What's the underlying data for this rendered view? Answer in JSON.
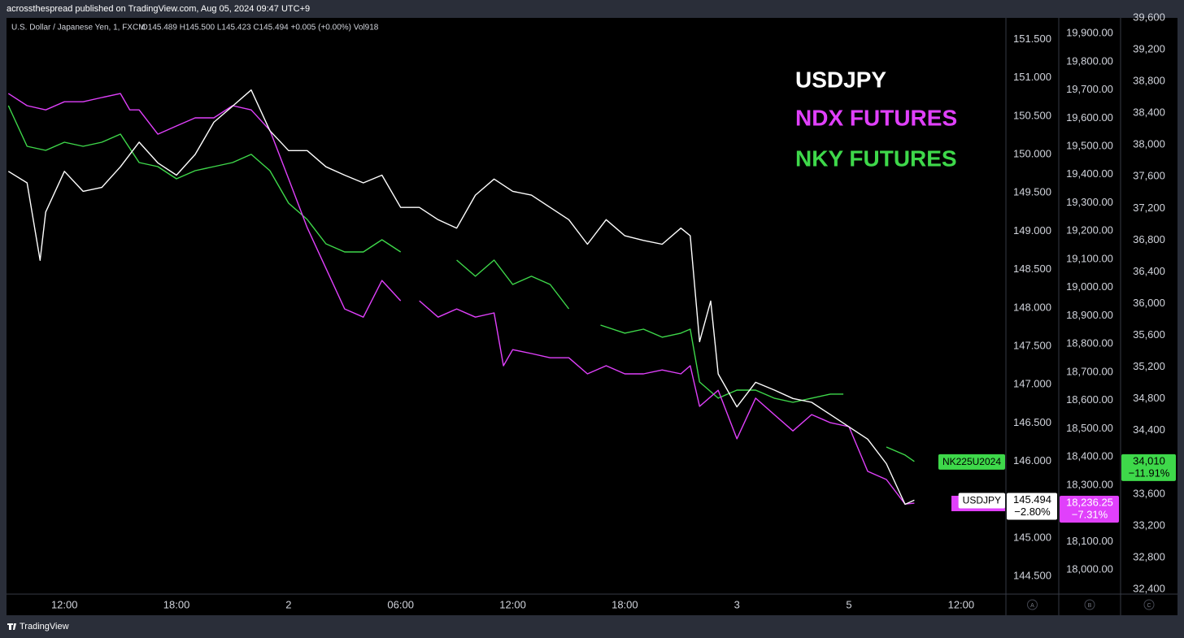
{
  "header": {
    "published": "acrossthespread published on TradingView.com, Aug 05, 2024 09:47 UTC+9"
  },
  "footer": {
    "brand": "TradingView"
  },
  "chart_data": {
    "type": "line",
    "symbol_info": "U.S. Dollar / Japanese Yen, 1, FXCM",
    "ohlc": "O145.489 H145.500 L145.423 C145.494 +0.005 (+0.00%) Vol918",
    "axis_buttons": [
      "A",
      "B",
      "C"
    ],
    "xlim": [
      8.9,
      62.4
    ],
    "xticks": [
      {
        "value": 12,
        "label": "12:00"
      },
      {
        "value": 18,
        "label": "18:00"
      },
      {
        "value": 24,
        "label": "2"
      },
      {
        "value": 30,
        "label": "06:00"
      },
      {
        "value": 36,
        "label": "12:00"
      },
      {
        "value": 42,
        "label": "18:00"
      },
      {
        "value": 48,
        "label": "3"
      },
      {
        "value": 54,
        "label": "5"
      },
      {
        "value": 60,
        "label": "12:00"
      }
    ],
    "ylim": [
      144.27,
      151.78
    ],
    "yticks": [
      {
        "value": 144.5,
        "label": "144.500"
      },
      {
        "value": 145,
        "label": "145.000"
      },
      {
        "value": 145.5,
        "label": "145.500"
      },
      {
        "value": 146,
        "label": "146.000"
      },
      {
        "value": 146.5,
        "label": "146.500"
      },
      {
        "value": 147,
        "label": "147.000"
      },
      {
        "value": 147.5,
        "label": "147.500"
      },
      {
        "value": 148,
        "label": "148.000"
      },
      {
        "value": 148.5,
        "label": "148.500"
      },
      {
        "value": 149,
        "label": "149.000"
      },
      {
        "value": 149.5,
        "label": "149.500"
      },
      {
        "value": 150,
        "label": "150.000"
      },
      {
        "value": 150.5,
        "label": "150.500"
      },
      {
        "value": 151,
        "label": "151.000"
      },
      {
        "value": 151.5,
        "label": "151.500"
      }
    ],
    "y2lim": [
      17914,
      19955
    ],
    "y2ticks": [
      {
        "value": 18000,
        "label": "18,000.00"
      },
      {
        "value": 18100,
        "label": "18,100.00"
      },
      {
        "value": 18200,
        "label": "18,200.00"
      },
      {
        "value": 18300,
        "label": "18,300.00"
      },
      {
        "value": 18400,
        "label": "18,400.00"
      },
      {
        "value": 18500,
        "label": "18,500.00"
      },
      {
        "value": 18600,
        "label": "18,600.00"
      },
      {
        "value": 18700,
        "label": "18,700.00"
      },
      {
        "value": 18800,
        "label": "18,800.00"
      },
      {
        "value": 18900,
        "label": "18,900.00"
      },
      {
        "value": 19000,
        "label": "19,000.00"
      },
      {
        "value": 19100,
        "label": "19,100.00"
      },
      {
        "value": 19200,
        "label": "19,200.00"
      },
      {
        "value": 19300,
        "label": "19,300.00"
      },
      {
        "value": 19400,
        "label": "19,400.00"
      },
      {
        "value": 19500,
        "label": "19,500.00"
      },
      {
        "value": 19600,
        "label": "19,600.00"
      },
      {
        "value": 19700,
        "label": "19,700.00"
      },
      {
        "value": 19800,
        "label": "19,800.00"
      },
      {
        "value": 19900,
        "label": "19,900.00"
      }
    ],
    "y3lim": [
      32339,
      39600
    ],
    "y3ticks": [
      {
        "value": 32400,
        "label": "32,400"
      },
      {
        "value": 32800,
        "label": "32,800"
      },
      {
        "value": 33200,
        "label": "33,200"
      },
      {
        "value": 33600,
        "label": "33,600"
      },
      {
        "value": 34000,
        "label": "34,000"
      },
      {
        "value": 34400,
        "label": "34,400"
      },
      {
        "value": 34800,
        "label": "34,800"
      },
      {
        "value": 35200,
        "label": "35,200"
      },
      {
        "value": 35600,
        "label": "35,600"
      },
      {
        "value": 36000,
        "label": "36,000"
      },
      {
        "value": 36400,
        "label": "36,400"
      },
      {
        "value": 36800,
        "label": "36,800"
      },
      {
        "value": 37200,
        "label": "37,200"
      },
      {
        "value": 37600,
        "label": "37,600"
      },
      {
        "value": 38000,
        "label": "38,000"
      },
      {
        "value": 38400,
        "label": "38,400"
      },
      {
        "value": 38800,
        "label": "38,800"
      },
      {
        "value": 39200,
        "label": "39,200"
      },
      {
        "value": 39600,
        "label": "39,600"
      }
    ],
    "series": [
      {
        "name": "NKY FUTURES",
        "color": "#3ed84a",
        "axis": "y3",
        "tag": "NK225U2024",
        "price_label": "34,010",
        "change_label": "−11.91%",
        "x": [
          9,
          10,
          11,
          12,
          13,
          14,
          15,
          16,
          17,
          18,
          19,
          20,
          21,
          22,
          23,
          24,
          25,
          26,
          27,
          28,
          29,
          30,
          31,
          33,
          34,
          35,
          36,
          37,
          38,
          39,
          40,
          40.7,
          42,
          43,
          44,
          45,
          45.5,
          46,
          47,
          48,
          49,
          50,
          51,
          52,
          53,
          53.7,
          55,
          56,
          57,
          57.5
        ],
        "values": [
          38494,
          37982,
          37931,
          38033,
          37982,
          38033,
          38136,
          37777,
          37726,
          37572,
          37675,
          37726,
          37777,
          37880,
          37675,
          37265,
          37060,
          36753,
          36651,
          36651,
          36804,
          36651,
          null,
          36548,
          36344,
          36548,
          36241,
          36344,
          36241,
          35934,
          null,
          35729,
          35627,
          35678,
          35576,
          35627,
          35678,
          35012,
          34808,
          34910,
          34910,
          34808,
          34756,
          34808,
          34859,
          34859,
          null,
          34193,
          34091,
          34010
        ]
      },
      {
        "name": "NDX FUTURES",
        "color": "#e040fb",
        "axis": "y2",
        "price_label": "18,236.25",
        "change_label": "−7.31%",
        "x": [
          9,
          10,
          11,
          12,
          13,
          14,
          15,
          15.5,
          16,
          17,
          18,
          19,
          20,
          21,
          22,
          23,
          24,
          25,
          26,
          27,
          28,
          29,
          30,
          30.5,
          31,
          32,
          33,
          34,
          35,
          35.5,
          36,
          37,
          38,
          39,
          40,
          41,
          42,
          43,
          44,
          45,
          45.5,
          46,
          47,
          48,
          49,
          50,
          51,
          52,
          53,
          54,
          55,
          56,
          57,
          57.5
        ],
        "values": [
          19687,
          19644,
          19629,
          19658,
          19658,
          19673,
          19687,
          19629,
          19629,
          19543,
          19572,
          19601,
          19601,
          19644,
          19629,
          19557,
          19385,
          19212,
          19068,
          18924,
          18895,
          19025,
          18953,
          null,
          18953,
          18895,
          18924,
          18895,
          18910,
          18723,
          18780,
          18766,
          18751,
          18751,
          18694,
          18723,
          18694,
          18694,
          18708,
          18694,
          18723,
          18579,
          18636,
          18464,
          18608,
          18550,
          18492,
          18550,
          18521,
          18507,
          18349,
          18320,
          18233,
          18236.25
        ]
      },
      {
        "name": "USDJPY",
        "color": "#ffffff",
        "axis": "y",
        "tag": "USDJPY",
        "price_label": "145.494",
        "change_label": "−2.80%",
        "x": [
          9,
          10,
          10.7,
          11,
          12,
          13,
          14,
          15,
          16,
          17,
          18,
          19,
          20,
          21,
          22,
          23,
          24,
          25,
          26,
          27,
          28,
          29,
          30,
          31,
          32,
          33,
          34,
          35,
          36,
          37,
          38,
          39,
          40,
          41,
          42,
          43,
          44,
          45,
          45.5,
          46,
          46.6,
          47,
          48,
          49,
          50,
          51,
          52,
          53,
          54,
          55,
          56,
          57,
          57.5
        ],
        "values": [
          149.78,
          149.63,
          148.62,
          149.25,
          149.78,
          149.52,
          149.57,
          149.84,
          150.16,
          149.89,
          149.73,
          150.0,
          150.42,
          150.63,
          150.84,
          150.31,
          150.05,
          150.05,
          149.84,
          149.73,
          149.63,
          149.73,
          149.31,
          149.31,
          149.15,
          149.04,
          149.47,
          149.68,
          149.52,
          149.47,
          149.31,
          149.15,
          148.83,
          149.15,
          148.94,
          148.88,
          148.83,
          149.04,
          148.94,
          147.56,
          148.09,
          147.14,
          146.71,
          147.03,
          146.93,
          146.82,
          146.77,
          146.61,
          146.45,
          146.29,
          145.97,
          145.44,
          145.494
        ]
      }
    ]
  }
}
